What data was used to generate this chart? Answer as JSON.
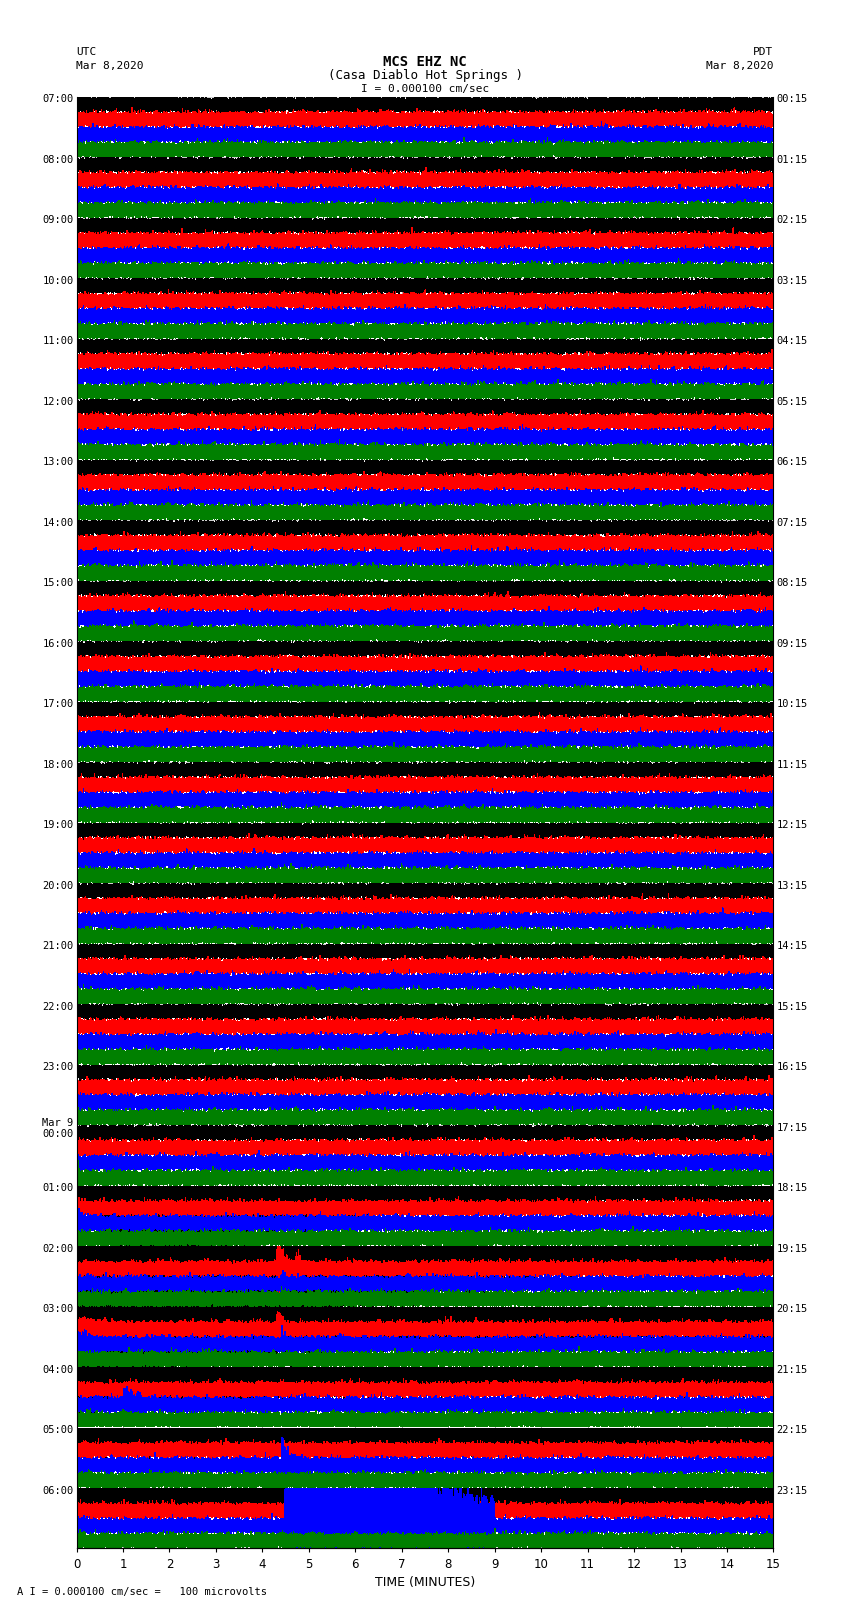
{
  "title_line1": "MCS EHZ NC",
  "title_line2": "(Casa Diablo Hot Springs )",
  "scale_label": "I = 0.000100 cm/sec",
  "footer_label": "A I = 0.000100 cm/sec =   100 microvolts",
  "utc_label": "UTC",
  "pdt_label": "PDT",
  "date_left": "Mar 8,2020",
  "date_right": "Mar 8,2020",
  "xlabel": "TIME (MINUTES)",
  "left_times": [
    "07:00",
    "08:00",
    "09:00",
    "10:00",
    "11:00",
    "12:00",
    "13:00",
    "14:00",
    "15:00",
    "16:00",
    "17:00",
    "18:00",
    "19:00",
    "20:00",
    "21:00",
    "22:00",
    "23:00",
    "Mar 9\n00:00",
    "01:00",
    "02:00",
    "03:00",
    "04:00",
    "05:00",
    "06:00"
  ],
  "right_times": [
    "00:15",
    "01:15",
    "02:15",
    "03:15",
    "04:15",
    "05:15",
    "06:15",
    "07:15",
    "08:15",
    "09:15",
    "10:15",
    "11:15",
    "12:15",
    "13:15",
    "14:15",
    "15:15",
    "16:15",
    "17:15",
    "18:15",
    "19:15",
    "20:15",
    "21:15",
    "22:15",
    "23:15"
  ],
  "colors": [
    "black",
    "red",
    "blue",
    "green"
  ],
  "num_rows": 24,
  "traces_per_row": 4,
  "minutes": 15,
  "bg_color": "white",
  "trace_amplitude": 0.28,
  "xmin": 0,
  "xmax": 15,
  "sample_rate": 100
}
